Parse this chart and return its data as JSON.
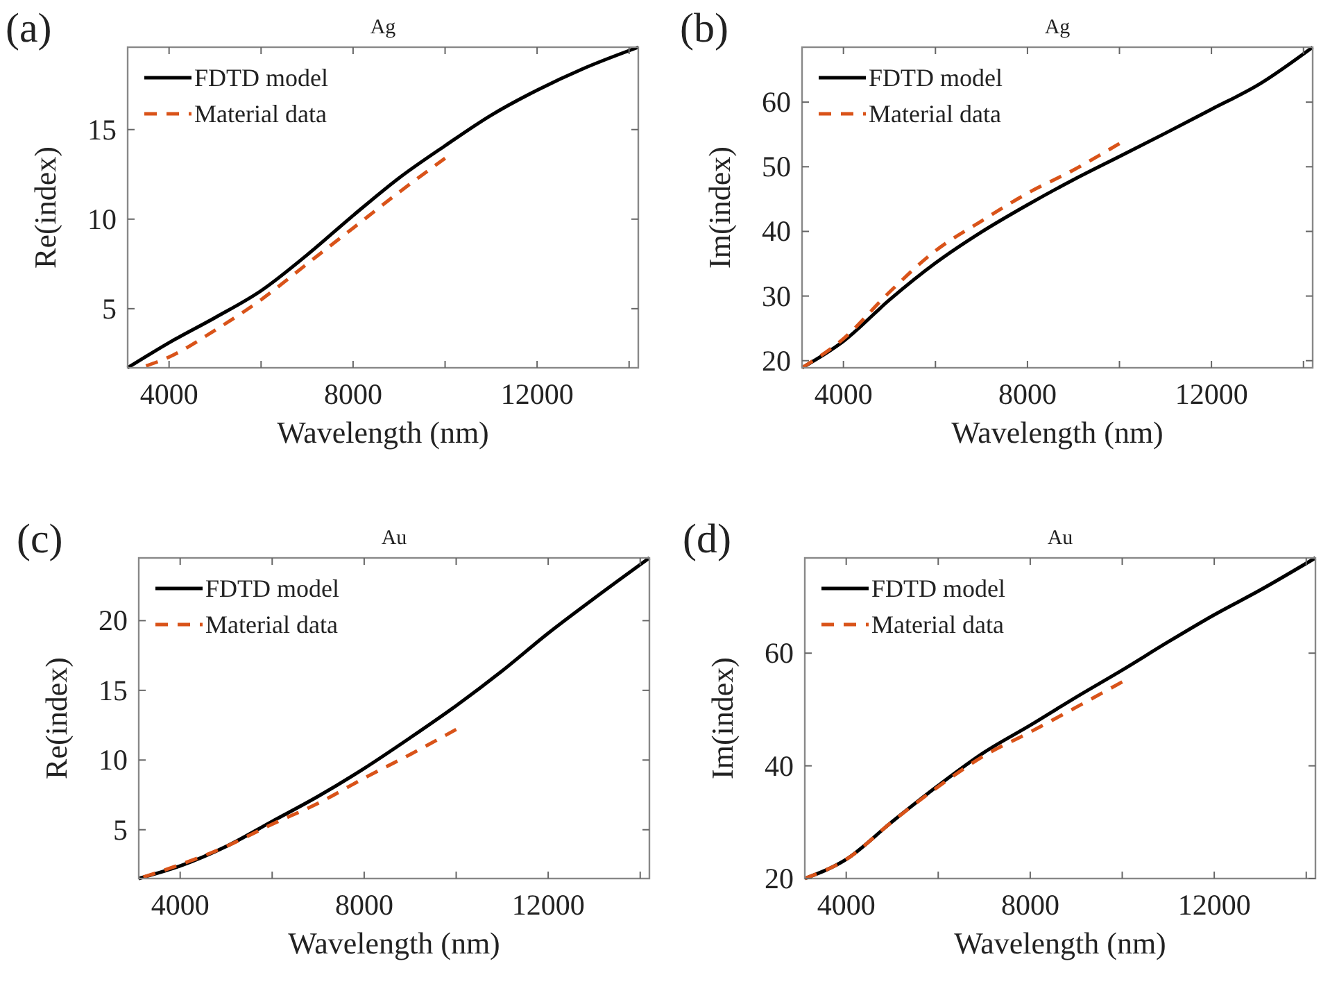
{
  "chart_data": [
    {
      "type": "line",
      "title": "Ag",
      "xlabel": "Wavelength (nm)",
      "ylabel": "Re(index)",
      "annotations": [
        "(a)"
      ],
      "legend": "top left",
      "grid": false,
      "xlim": [
        3100,
        14200
      ],
      "ylim": [
        1.7,
        19.6
      ],
      "xticks": [
        4000,
        {
          "value": 6000,
          "label": null
        },
        8000,
        {
          "value": 10000,
          "label": null
        },
        12000,
        {
          "value": 14000,
          "label": null
        }
      ],
      "yticks": [
        5,
        10,
        15
      ],
      "series": [
        {
          "name": "FDTD model",
          "color": "#000000",
          "line_style": "solid",
          "x": [
            3100,
            4000,
            5000,
            6000,
            7000,
            8000,
            9000,
            10000,
            11000,
            12000,
            13000,
            14200
          ],
          "values": [
            1.7,
            3.1,
            4.5,
            6.0,
            8.0,
            10.2,
            12.3,
            14.1,
            15.8,
            17.2,
            18.4,
            19.6
          ]
        },
        {
          "name": "Material data",
          "color": "#d95319",
          "line_style": "dashed",
          "x": [
            3500,
            4000,
            5000,
            6000,
            7000,
            8000,
            9000,
            10000
          ],
          "values": [
            1.8,
            2.3,
            3.8,
            5.5,
            7.5,
            9.5,
            11.5,
            13.4
          ]
        }
      ]
    },
    {
      "type": "line",
      "title": "Ag",
      "xlabel": "Wavelength (nm)",
      "ylabel": "Im(index)",
      "annotations": [
        "(b)"
      ],
      "legend": "top left",
      "grid": false,
      "xlim": [
        3100,
        14200
      ],
      "ylim": [
        18.9,
        68.5
      ],
      "xticks": [
        4000,
        {
          "value": 6000,
          "label": null
        },
        8000,
        {
          "value": 10000,
          "label": null
        },
        12000,
        {
          "value": 14000,
          "label": null
        }
      ],
      "yticks": [
        20,
        30,
        40,
        50,
        60
      ],
      "series": [
        {
          "name": "FDTD model",
          "color": "#000000",
          "line_style": "solid",
          "x": [
            3100,
            4000,
            5000,
            6000,
            7000,
            8000,
            9000,
            10000,
            11000,
            12000,
            13000,
            14200
          ],
          "values": [
            18.9,
            23,
            29.4,
            35.1,
            39.9,
            44.1,
            48,
            51.6,
            55.2,
            58.9,
            62.6,
            68.5
          ]
        },
        {
          "name": "Material data",
          "color": "#d95319",
          "line_style": "dashed",
          "x": [
            3100,
            4000,
            5000,
            6000,
            7000,
            8000,
            9000,
            10000
          ],
          "values": [
            18.9,
            23.4,
            30.6,
            37.0,
            41.6,
            45.9,
            49.5,
            53.6
          ]
        }
      ]
    },
    {
      "type": "line",
      "title": "Au",
      "xlabel": "Wavelength (nm)",
      "ylabel": "Re(index)",
      "annotations": [
        "(c)"
      ],
      "legend": "top left",
      "grid": false,
      "xlim": [
        3100,
        14200
      ],
      "ylim": [
        1.5,
        24.5
      ],
      "xticks": [
        4000,
        {
          "value": 6000,
          "label": null
        },
        8000,
        {
          "value": 10000,
          "label": null
        },
        12000,
        {
          "value": 14000,
          "label": null
        }
      ],
      "yticks": [
        5,
        10,
        15,
        20
      ],
      "series": [
        {
          "name": "FDTD model",
          "color": "#000000",
          "line_style": "solid",
          "x": [
            3100,
            4000,
            5000,
            6000,
            7000,
            8000,
            9000,
            10000,
            11000,
            12000,
            13000,
            14200
          ],
          "values": [
            1.5,
            2.4,
            3.8,
            5.6,
            7.4,
            9.4,
            11.6,
            13.9,
            16.4,
            19.1,
            21.6,
            24.5
          ]
        },
        {
          "name": "Material data",
          "color": "#d95319",
          "line_style": "dashed",
          "x": [
            3200,
            4000,
            5000,
            6000,
            7000,
            8000,
            9000,
            10000
          ],
          "values": [
            1.6,
            2.5,
            3.8,
            5.4,
            6.9,
            8.7,
            10.4,
            12.2
          ]
        }
      ]
    },
    {
      "type": "line",
      "title": "Au",
      "xlabel": "Wavelength (nm)",
      "ylabel": "Im(index)",
      "annotations": [
        "(d)"
      ],
      "legend": "top left",
      "grid": false,
      "xlim": [
        3100,
        14200
      ],
      "ylim": [
        20,
        76.9
      ],
      "xticks": [
        4000,
        {
          "value": 6000,
          "label": null
        },
        8000,
        {
          "value": 10000,
          "label": null
        },
        12000,
        {
          "value": 14000,
          "label": null
        }
      ],
      "yticks": [
        20,
        40,
        60
      ],
      "series": [
        {
          "name": "FDTD model",
          "color": "#000000",
          "line_style": "solid",
          "x": [
            3100,
            4000,
            5000,
            6000,
            7000,
            8000,
            9000,
            10000,
            11000,
            12000,
            13000,
            14200
          ],
          "values": [
            20,
            23.4,
            30.1,
            36.5,
            42.4,
            47.2,
            52.2,
            57,
            62,
            66.8,
            71.2,
            76.9
          ]
        },
        {
          "name": "Material data",
          "color": "#d95319",
          "line_style": "dashed",
          "x": [
            3100,
            4000,
            5000,
            6000,
            7000,
            8000,
            9000,
            10000
          ],
          "values": [
            20,
            23.4,
            30.1,
            36.3,
            41.8,
            46,
            50.4,
            54.9
          ]
        }
      ]
    }
  ]
}
